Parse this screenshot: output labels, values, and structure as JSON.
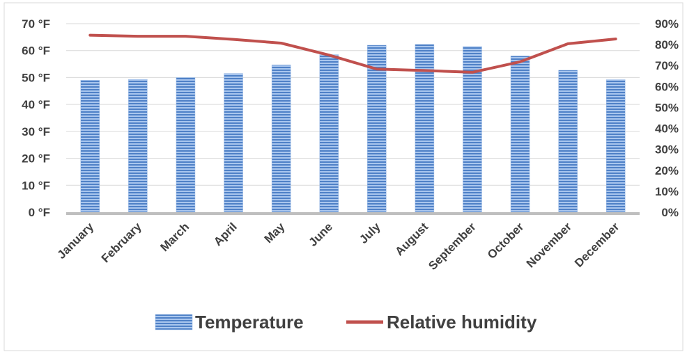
{
  "chart_data": {
    "type": "bar",
    "categories": [
      "January",
      "February",
      "March",
      "April",
      "May",
      "June",
      "July",
      "August",
      "September",
      "October",
      "November",
      "December"
    ],
    "series": [
      {
        "name": "Temperature",
        "type": "bar",
        "axis": "left",
        "values": [
          49,
          49.3,
          50,
          51.5,
          54.7,
          58.5,
          62,
          62.3,
          61.5,
          58,
          52.7,
          49.2
        ],
        "color": "#5b8fd4"
      },
      {
        "name": "Relative humidity",
        "type": "line",
        "axis": "right",
        "values": [
          84.5,
          84,
          84,
          82.5,
          80.7,
          75,
          68.3,
          67.6,
          66.8,
          71.8,
          80.4,
          82.7
        ],
        "color": "#c0504d"
      }
    ],
    "y_left": {
      "ylim": [
        0,
        70
      ],
      "ticks": [
        0,
        10,
        20,
        30,
        40,
        50,
        60,
        70
      ],
      "tick_labels": [
        "0 °F",
        "10 °F",
        "20 °F",
        "30 °F",
        "40 °F",
        "50 °F",
        "60 °F",
        "70 °F"
      ]
    },
    "y_right": {
      "ylim": [
        0,
        90
      ],
      "ticks": [
        0,
        10,
        20,
        30,
        40,
        50,
        60,
        70,
        80,
        90
      ],
      "tick_labels": [
        "0%",
        "10%",
        "20%",
        "30%",
        "40%",
        "50%",
        "60%",
        "70%",
        "80%",
        "90%"
      ]
    },
    "grid": true,
    "legend": "bottom",
    "title": "",
    "xlabel": "",
    "ylabel": ""
  }
}
